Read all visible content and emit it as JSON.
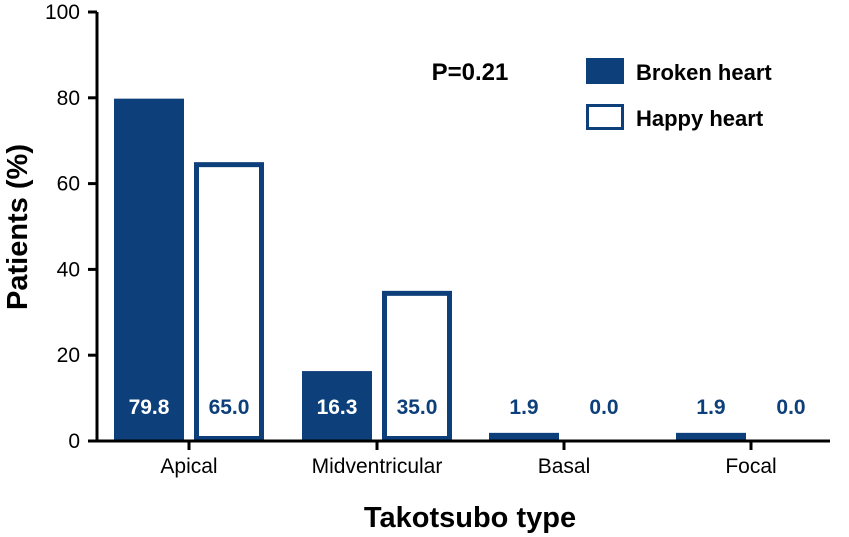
{
  "chart_data": {
    "type": "bar",
    "title": "",
    "xlabel": "Takotsubo type",
    "ylabel": "Patients (%)",
    "ylim": [
      0,
      100
    ],
    "yticks": [
      0,
      20,
      40,
      60,
      80,
      100
    ],
    "categories": [
      "Apical",
      "Midventricular",
      "Basal",
      "Focal"
    ],
    "series": [
      {
        "name": "Broken heart",
        "style": "filled",
        "color": "#0d3f7a",
        "values": [
          79.8,
          16.3,
          1.9,
          1.9
        ],
        "labels": [
          "79.8",
          "16.3",
          "1.9",
          "1.9"
        ]
      },
      {
        "name": "Happy heart",
        "style": "outline",
        "color": "#0d3f7a",
        "values": [
          65.0,
          35.0,
          0.0,
          0.0
        ],
        "labels": [
          "65.0",
          "35.0",
          "0.0",
          "0.0"
        ]
      }
    ],
    "annotation": "P=0.21",
    "legend_position": "top-right",
    "grid": false
  }
}
